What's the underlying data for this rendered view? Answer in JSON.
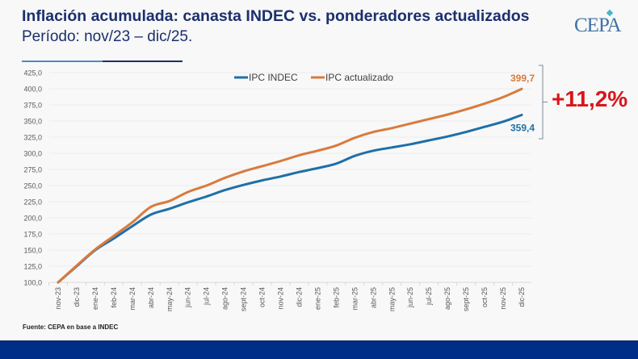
{
  "header": {
    "title": "Inflación acumulada: canasta INDEC vs. ponderadores actualizados",
    "subtitle": "Período: nov/23 – dic/25.",
    "logo_text": "CEPA"
  },
  "footer": {
    "source": "Fuente: CEPA en base a INDEC"
  },
  "colors": {
    "title": "#1c2f6e",
    "indec": "#1f6fa8",
    "updated": "#d97a3e",
    "highlight": "#d9141c",
    "band": "#002d87"
  },
  "chart_data": {
    "type": "line",
    "title": "Inflación acumulada: canasta INDEC vs. ponderadores actualizados",
    "subtitle": "Período: nov/23 – dic/25.",
    "xlabel": "",
    "ylabel": "",
    "ylim": [
      100,
      425
    ],
    "yticks": [
      "100,0",
      "125,0",
      "150,0",
      "175,0",
      "200,0",
      "225,0",
      "250,0",
      "275,0",
      "300,0",
      "325,0",
      "350,0",
      "375,0",
      "400,0",
      "425,0"
    ],
    "grid": true,
    "legend_position": "top-center",
    "categories": [
      "nov-23",
      "dic-23",
      "ene-24",
      "feb-24",
      "mar-24",
      "abr-24",
      "may-24",
      "jun-24",
      "jul-24",
      "ago-24",
      "sept-24",
      "oct-24",
      "nov-24",
      "dic-24",
      "ene-25",
      "feb-25",
      "mar-25",
      "abr-25",
      "may-25",
      "jun-25",
      "jul-25",
      "ago-25",
      "sept-25",
      "oct-25",
      "nov-25",
      "dic-25"
    ],
    "series": [
      {
        "name": "IPC INDEC",
        "color": "#1f6fa8",
        "values": [
          100,
          125,
          150,
          168,
          187,
          205,
          214,
          224,
          233,
          243,
          251,
          258,
          264,
          271,
          277,
          284,
          296,
          304,
          309,
          314,
          320,
          326,
          333,
          341,
          349,
          359.4
        ],
        "end_label": "359,4"
      },
      {
        "name": "IPC actualizado",
        "color": "#d97a3e",
        "values": [
          100,
          126,
          151,
          172,
          193,
          217,
          226,
          240,
          250,
          262,
          272,
          280,
          288,
          297,
          304,
          312,
          324,
          333,
          339,
          346,
          353,
          360,
          368,
          377,
          387,
          399.7
        ],
        "end_label": "399,7"
      }
    ],
    "annotations": [
      {
        "text": "+11,2%",
        "meaning": "difference between IPC actualizado and IPC INDEC at dic-25"
      }
    ]
  }
}
